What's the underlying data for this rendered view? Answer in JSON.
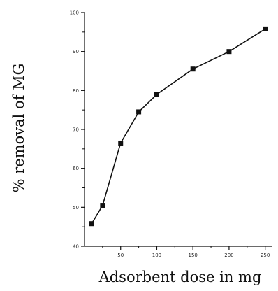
{
  "chart_data": {
    "type": "line",
    "title": "",
    "xlabel": "Adsorbent dose in mg",
    "ylabel": "% removal of MG",
    "xlim": [
      0,
      260
    ],
    "ylim": [
      40,
      100
    ],
    "x_ticks": [
      "50",
      "100",
      "150",
      "200",
      "250"
    ],
    "y_ticks": [
      "40",
      "50",
      "60",
      "70",
      "80",
      "90",
      "100"
    ],
    "grid": false,
    "legend": "none",
    "marker": "square",
    "colors": {
      "line": "#111111",
      "axis": "#111111"
    },
    "series": [
      {
        "x": [
          10,
          25,
          50,
          75,
          100,
          150,
          200,
          250
        ],
        "y": [
          45.8,
          50.5,
          66.5,
          74.5,
          79.0,
          85.5,
          90.0,
          95.8
        ]
      }
    ]
  }
}
